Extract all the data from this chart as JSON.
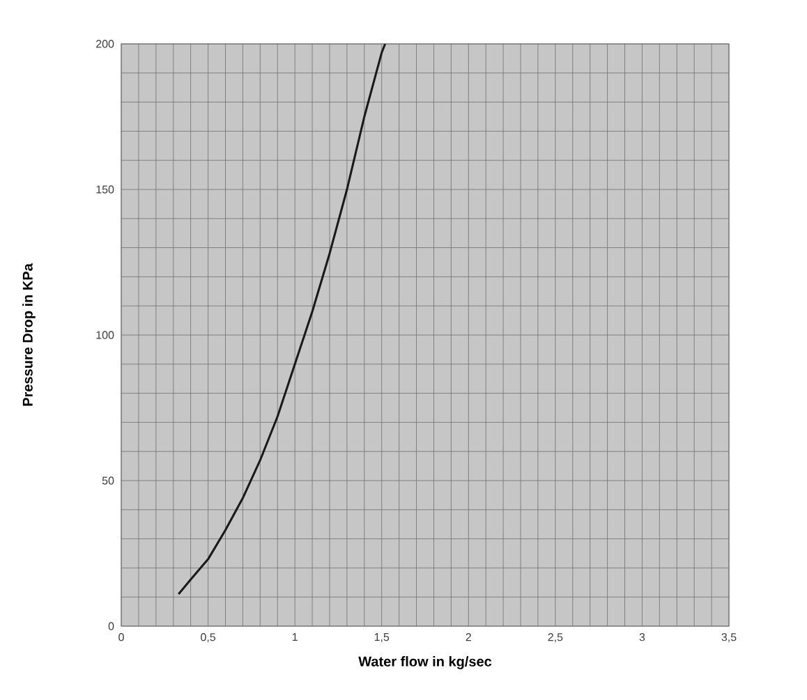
{
  "chart_data": {
    "type": "line",
    "xlabel": "Water flow in kg/sec",
    "ylabel": "Pressure Drop in KPa",
    "xlim": [
      0,
      3.5
    ],
    "ylim": [
      0,
      200
    ],
    "xticks": [
      0,
      {
        "value": 0.1,
        "label": null
      },
      {
        "value": 0.2,
        "label": null
      },
      {
        "value": 0.3,
        "label": null
      },
      {
        "value": 0.4,
        "label": null
      },
      {
        "value": 0.5,
        "label": "0,5"
      },
      {
        "value": 0.6,
        "label": null
      },
      {
        "value": 0.7,
        "label": null
      },
      {
        "value": 0.8,
        "label": null
      },
      {
        "value": 0.9,
        "label": null
      },
      1,
      {
        "value": 1.1,
        "label": null
      },
      {
        "value": 1.2,
        "label": null
      },
      {
        "value": 1.3,
        "label": null
      },
      {
        "value": 1.4,
        "label": null
      },
      {
        "value": 1.5,
        "label": "1,5"
      },
      {
        "value": 1.6,
        "label": null
      },
      {
        "value": 1.7,
        "label": null
      },
      {
        "value": 1.8,
        "label": null
      },
      {
        "value": 1.9,
        "label": null
      },
      2,
      {
        "value": 2.1,
        "label": null
      },
      {
        "value": 2.2,
        "label": null
      },
      {
        "value": 2.3,
        "label": null
      },
      {
        "value": 2.4,
        "label": null
      },
      {
        "value": 2.5,
        "label": "2,5"
      },
      {
        "value": 2.6,
        "label": null
      },
      {
        "value": 2.7,
        "label": null
      },
      {
        "value": 2.8,
        "label": null
      },
      {
        "value": 2.9,
        "label": null
      },
      3,
      {
        "value": 3.1,
        "label": null
      },
      {
        "value": 3.2,
        "label": null
      },
      {
        "value": 3.3,
        "label": null
      },
      {
        "value": 3.4,
        "label": null
      },
      {
        "value": 3.5,
        "label": "3,5"
      }
    ],
    "yticks": [
      0,
      {
        "value": 10,
        "label": null
      },
      {
        "value": 20,
        "label": null
      },
      {
        "value": 30,
        "label": null
      },
      {
        "value": 40,
        "label": null
      },
      50,
      {
        "value": 60,
        "label": null
      },
      {
        "value": 70,
        "label": null
      },
      {
        "value": 80,
        "label": null
      },
      {
        "value": 90,
        "label": null
      },
      100,
      {
        "value": 110,
        "label": null
      },
      {
        "value": 120,
        "label": null
      },
      {
        "value": 130,
        "label": null
      },
      {
        "value": 140,
        "label": null
      },
      150,
      {
        "value": 160,
        "label": null
      },
      {
        "value": 170,
        "label": null
      },
      {
        "value": 180,
        "label": null
      },
      {
        "value": 190,
        "label": null
      },
      200
    ],
    "grid": true,
    "series": [
      {
        "color": "#1a1a1a",
        "x": [
          0.33,
          0.4,
          0.5,
          0.6,
          0.7,
          0.8,
          0.9,
          1.0,
          1.1,
          1.2,
          1.3,
          1.4,
          1.5,
          1.52
        ],
        "values": [
          11,
          16,
          23,
          33,
          44,
          57,
          72,
          90,
          108,
          128,
          150,
          175,
          197,
          200
        ]
      }
    ]
  }
}
